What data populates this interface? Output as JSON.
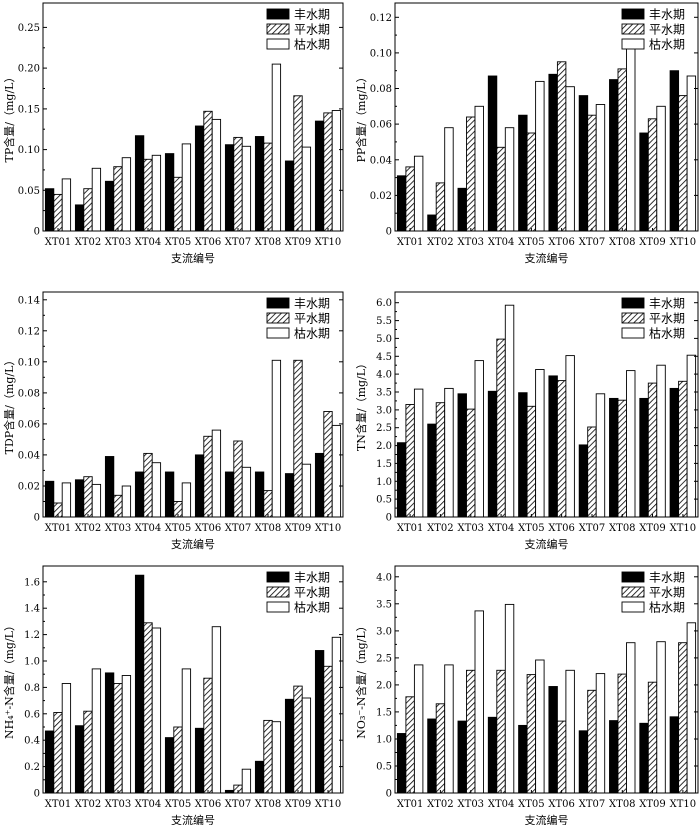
{
  "legend": [
    "丰水期",
    "平水期",
    "枯水期"
  ],
  "xlabel": "支流编号",
  "categories": [
    "XT01",
    "XT02",
    "XT03",
    "XT04",
    "XT05",
    "XT06",
    "XT07",
    "XT08",
    "XT09",
    "XT10"
  ],
  "chart_data": [
    {
      "type": "bar",
      "ylabel": "TP含量/（mg/L）",
      "ylim": [
        0,
        0.28
      ],
      "yticks": [
        "0",
        "0.05",
        "0.10",
        "0.15",
        "0.20",
        "0.25"
      ],
      "series": [
        {
          "name": "丰水期",
          "values": [
            0.052,
            0.032,
            0.061,
            0.117,
            0.095,
            0.129,
            0.106,
            0.116,
            0.086,
            0.135
          ]
        },
        {
          "name": "平水期",
          "values": [
            0.045,
            0.052,
            0.079,
            0.088,
            0.066,
            0.147,
            0.115,
            0.108,
            0.166,
            0.145
          ]
        },
        {
          "name": "枯水期",
          "values": [
            0.064,
            0.077,
            0.09,
            0.093,
            0.107,
            0.137,
            0.104,
            0.205,
            0.103,
            0.148
          ]
        }
      ]
    },
    {
      "type": "bar",
      "ylabel": "PP含量/（mg/L）",
      "ylim": [
        0,
        0.128
      ],
      "yticks": [
        "0",
        "0.02",
        "0.04",
        "0.06",
        "0.08",
        "0.10",
        "0.12"
      ],
      "series": [
        {
          "name": "丰水期",
          "values": [
            0.031,
            0.009,
            0.024,
            0.087,
            0.065,
            0.088,
            0.076,
            0.085,
            0.055,
            0.09
          ]
        },
        {
          "name": "平水期",
          "values": [
            0.036,
            0.027,
            0.064,
            0.047,
            0.055,
            0.095,
            0.065,
            0.091,
            0.063,
            0.076
          ]
        },
        {
          "name": "枯水期",
          "values": [
            0.042,
            0.058,
            0.07,
            0.058,
            0.084,
            0.081,
            0.071,
            0.103,
            0.07,
            0.087
          ]
        }
      ]
    },
    {
      "type": "bar",
      "ylabel": "TDP含量/（mg/L）",
      "ylim": [
        0,
        0.145
      ],
      "yticks": [
        "0",
        "0.02",
        "0.04",
        "0.06",
        "0.08",
        "0.10",
        "0.12",
        "0.14"
      ],
      "series": [
        {
          "name": "丰水期",
          "values": [
            0.023,
            0.024,
            0.039,
            0.029,
            0.029,
            0.04,
            0.029,
            0.029,
            0.028,
            0.041
          ]
        },
        {
          "name": "平水期",
          "values": [
            0.009,
            0.026,
            0.014,
            0.041,
            0.01,
            0.052,
            0.049,
            0.017,
            0.101,
            0.068
          ]
        },
        {
          "name": "枯水期",
          "values": [
            0.022,
            0.021,
            0.02,
            0.035,
            0.022,
            0.056,
            0.032,
            0.101,
            0.034,
            0.059
          ]
        }
      ]
    },
    {
      "type": "bar",
      "ylabel": "TN含量/（mg/L）",
      "ylim": [
        0,
        6.3
      ],
      "yticks": [
        "0",
        "0.5",
        "1.0",
        "1.5",
        "2.0",
        "2.5",
        "3.0",
        "3.5",
        "4.0",
        "4.5",
        "5.0",
        "5.5",
        "6.0"
      ],
      "series": [
        {
          "name": "丰水期",
          "values": [
            2.08,
            2.6,
            3.45,
            3.52,
            3.48,
            3.95,
            2.02,
            3.32,
            3.32,
            3.6
          ]
        },
        {
          "name": "平水期",
          "values": [
            3.15,
            3.2,
            3.02,
            4.98,
            3.1,
            3.82,
            2.52,
            3.27,
            3.75,
            3.8
          ]
        },
        {
          "name": "枯水期",
          "values": [
            3.58,
            3.6,
            4.38,
            5.93,
            4.13,
            4.52,
            3.45,
            4.1,
            4.25,
            4.53
          ]
        }
      ]
    },
    {
      "type": "bar",
      "ylabel": "NH₄⁺-N含量/（mg/L）",
      "ylim": [
        0,
        1.72
      ],
      "yticks": [
        "0",
        "0.2",
        "0.4",
        "0.6",
        "0.8",
        "1.0",
        "1.2",
        "1.4",
        "1.6"
      ],
      "series": [
        {
          "name": "丰水期",
          "values": [
            0.47,
            0.51,
            0.91,
            1.65,
            0.42,
            0.49,
            0.02,
            0.24,
            0.71,
            1.08
          ]
        },
        {
          "name": "平水期",
          "values": [
            0.61,
            0.62,
            0.83,
            1.29,
            0.5,
            0.87,
            0.06,
            0.55,
            0.81,
            0.96
          ]
        },
        {
          "name": "枯水期",
          "values": [
            0.83,
            0.94,
            0.89,
            1.25,
            0.94,
            1.26,
            0.18,
            0.54,
            0.72,
            1.18
          ]
        }
      ]
    },
    {
      "type": "bar",
      "ylabel": "NO₃⁻-N含量/（mg/L）",
      "ylim": [
        0,
        4.2
      ],
      "yticks": [
        "0",
        "0.5",
        "1.0",
        "1.5",
        "2.0",
        "2.5",
        "3.0",
        "3.5",
        "4.0"
      ],
      "series": [
        {
          "name": "丰水期",
          "values": [
            1.1,
            1.37,
            1.33,
            1.4,
            1.25,
            1.97,
            1.15,
            1.34,
            1.29,
            1.41
          ]
        },
        {
          "name": "平水期",
          "values": [
            1.78,
            1.65,
            2.27,
            2.27,
            2.19,
            1.33,
            1.9,
            2.2,
            2.05,
            2.78
          ]
        },
        {
          "name": "枯水期",
          "values": [
            2.37,
            2.37,
            3.37,
            3.49,
            2.46,
            2.27,
            2.21,
            2.78,
            2.8,
            3.15
          ]
        }
      ]
    }
  ]
}
